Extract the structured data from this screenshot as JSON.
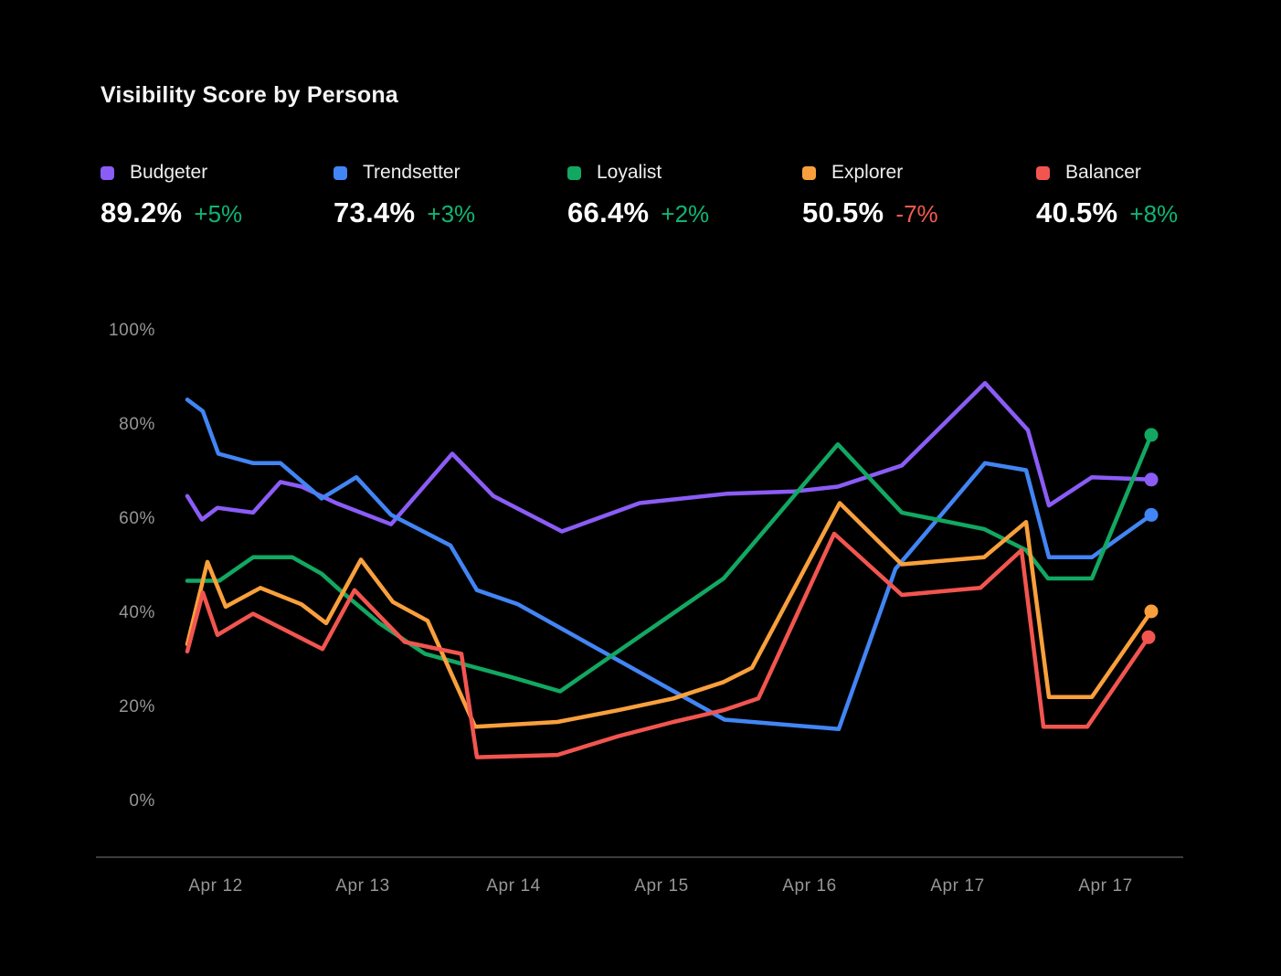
{
  "title": "Visibility Score by Persona",
  "legend": [
    {
      "name": "Budgeter",
      "value": "89.2%",
      "delta": "+5%",
      "direction": "up",
      "color": "#8b5cf6"
    },
    {
      "name": "Trendsetter",
      "value": "73.4%",
      "delta": "+3%",
      "direction": "up",
      "color": "#4285f4"
    },
    {
      "name": "Loyalist",
      "value": "66.4%",
      "delta": "+2%",
      "direction": "up",
      "color": "#12a862"
    },
    {
      "name": "Explorer",
      "value": "50.5%",
      "delta": "-7%",
      "direction": "down",
      "color": "#f9a03c"
    },
    {
      "name": "Balancer",
      "value": "40.5%",
      "delta": "+8%",
      "direction": "up",
      "color": "#f2554f"
    }
  ],
  "colors": {
    "background": "#000000",
    "title_text": "#f5f5f5",
    "positive": "#10b573",
    "negative": "#f25b52",
    "axis_text": "#969696",
    "axis_line": "#3d3d3d"
  },
  "chart_data": {
    "type": "line",
    "title": "Visibility Score by Persona",
    "xlabel": "",
    "ylabel": "",
    "ylim": [
      0,
      100
    ],
    "grid": false,
    "legend_position": "top",
    "end_markers": true,
    "y_ticks": [
      "100%",
      "80%",
      "60%",
      "40%",
      "20%",
      "0%"
    ],
    "y_tick_values": [
      100,
      80,
      60,
      40,
      20,
      0
    ],
    "x_ticks": [
      "Apr 12",
      "Apr 13",
      "Apr 14",
      "Apr 15",
      "Apr 16",
      "Apr 17",
      "Apr 17"
    ],
    "series": [
      {
        "name": "Budgeter",
        "color": "#8b5cf6",
        "points": [
          [
            205,
            64.5
          ],
          [
            221,
            59.5
          ],
          [
            238,
            62
          ],
          [
            277,
            61
          ],
          [
            307,
            67.5
          ],
          [
            330,
            66.5
          ],
          [
            368,
            63
          ],
          [
            428,
            58.5
          ],
          [
            495,
            73.5
          ],
          [
            540,
            64.5
          ],
          [
            615,
            57
          ],
          [
            700,
            63
          ],
          [
            795,
            65
          ],
          [
            870,
            65.5
          ],
          [
            917,
            66.5
          ],
          [
            987,
            71
          ],
          [
            1078,
            88.5
          ],
          [
            1125,
            78.5
          ],
          [
            1148,
            62.5
          ],
          [
            1195,
            68.5
          ],
          [
            1260,
            68
          ]
        ]
      },
      {
        "name": "Trendsetter",
        "color": "#4285f4",
        "points": [
          [
            205,
            85
          ],
          [
            222,
            82.5
          ],
          [
            239,
            73.5
          ],
          [
            277,
            71.5
          ],
          [
            307,
            71.5
          ],
          [
            352,
            64
          ],
          [
            390,
            68.5
          ],
          [
            428,
            60.5
          ],
          [
            493,
            54
          ],
          [
            522,
            44.5
          ],
          [
            567,
            41.5
          ],
          [
            793,
            17
          ],
          [
            918,
            15
          ],
          [
            980,
            49
          ],
          [
            1078,
            71.5
          ],
          [
            1123,
            70
          ],
          [
            1148,
            51.5
          ],
          [
            1195,
            51.5
          ],
          [
            1260,
            60.5
          ]
        ]
      },
      {
        "name": "Loyalist",
        "color": "#12a862",
        "points": [
          [
            205,
            46.5
          ],
          [
            240,
            46.5
          ],
          [
            277,
            51.5
          ],
          [
            320,
            51.5
          ],
          [
            352,
            48
          ],
          [
            375,
            44
          ],
          [
            415,
            37.5
          ],
          [
            465,
            31
          ],
          [
            560,
            26
          ],
          [
            613,
            23
          ],
          [
            792,
            47
          ],
          [
            917,
            75.5
          ],
          [
            987,
            61
          ],
          [
            1077,
            57.5
          ],
          [
            1123,
            53
          ],
          [
            1147,
            47
          ],
          [
            1195,
            47
          ],
          [
            1260,
            77.5
          ]
        ]
      },
      {
        "name": "Explorer",
        "color": "#f9a03c",
        "points": [
          [
            205,
            33
          ],
          [
            227,
            50.5
          ],
          [
            247,
            41
          ],
          [
            285,
            45
          ],
          [
            330,
            41.5
          ],
          [
            357,
            37.5
          ],
          [
            395,
            51
          ],
          [
            430,
            42
          ],
          [
            468,
            38
          ],
          [
            520,
            15.5
          ],
          [
            610,
            16.5
          ],
          [
            677,
            19
          ],
          [
            737,
            21.5
          ],
          [
            792,
            25
          ],
          [
            823,
            28
          ],
          [
            919,
            63
          ],
          [
            987,
            50
          ],
          [
            1077,
            51.5
          ],
          [
            1123,
            59
          ],
          [
            1148,
            21.8
          ],
          [
            1195,
            21.8
          ],
          [
            1260,
            40
          ]
        ]
      },
      {
        "name": "Balancer",
        "color": "#f2554f",
        "points": [
          [
            205,
            31.5
          ],
          [
            222,
            44
          ],
          [
            238,
            35
          ],
          [
            277,
            39.5
          ],
          [
            353,
            32
          ],
          [
            388,
            44.5
          ],
          [
            443,
            33.5
          ],
          [
            505,
            31
          ],
          [
            522,
            9
          ],
          [
            610,
            9.5
          ],
          [
            677,
            13.5
          ],
          [
            737,
            16.5
          ],
          [
            792,
            19
          ],
          [
            830,
            21.5
          ],
          [
            913,
            56.5
          ],
          [
            987,
            43.5
          ],
          [
            1073,
            45
          ],
          [
            1118,
            53
          ],
          [
            1142,
            15.5
          ],
          [
            1190,
            15.5
          ],
          [
            1257,
            34.5
          ]
        ]
      }
    ]
  }
}
